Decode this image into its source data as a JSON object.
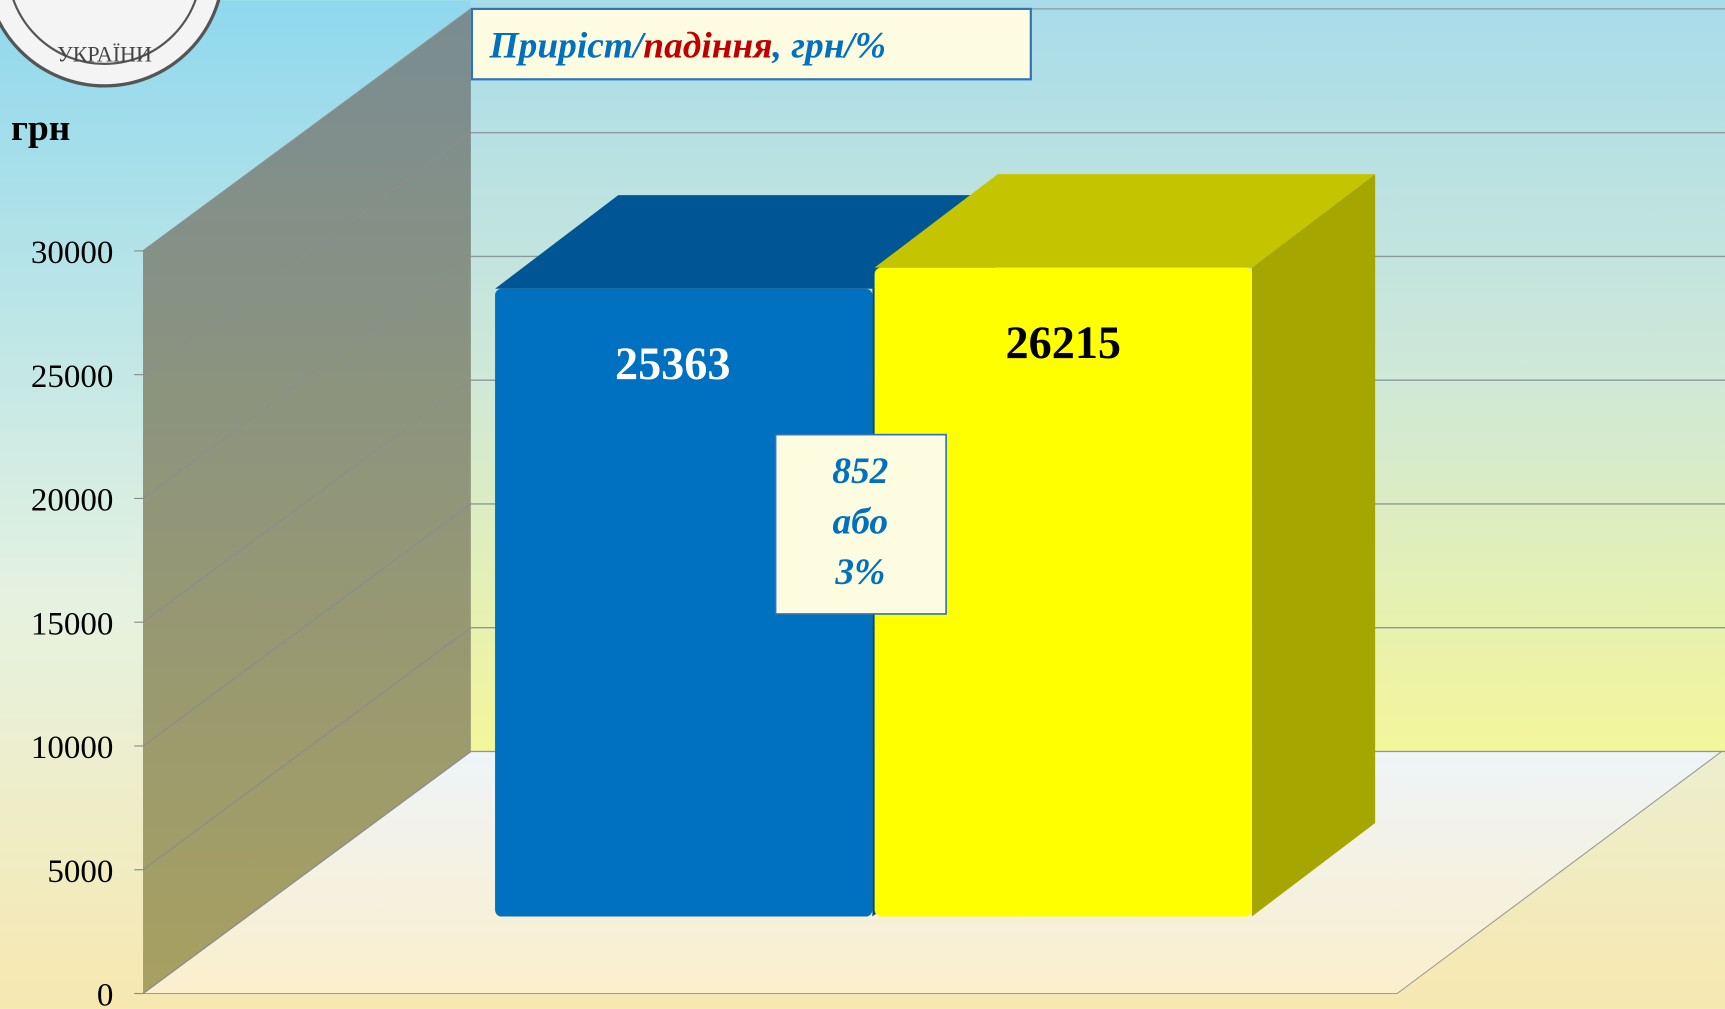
{
  "logo_text": "УКРАЇНИ",
  "chart_data": {
    "type": "bar3d",
    "y_label": "грн",
    "annotation": {
      "parts": [
        "Приріст/",
        "падіння",
        ", грн/%"
      ],
      "colors": [
        "#0070c0",
        "#c00000",
        "#0070c0"
      ]
    },
    "change_box": {
      "lines": [
        "852",
        "або",
        "3%"
      ]
    },
    "values": [
      25363,
      26215
    ],
    "colors": [
      "#0070c0",
      "#ffff00"
    ],
    "label_colors": [
      "#ffffff",
      "#000000"
    ],
    "ylim": [
      0,
      30000
    ],
    "yticks": [
      0,
      5000,
      10000,
      15000,
      20000,
      25000,
      30000
    ],
    "grid": true
  }
}
